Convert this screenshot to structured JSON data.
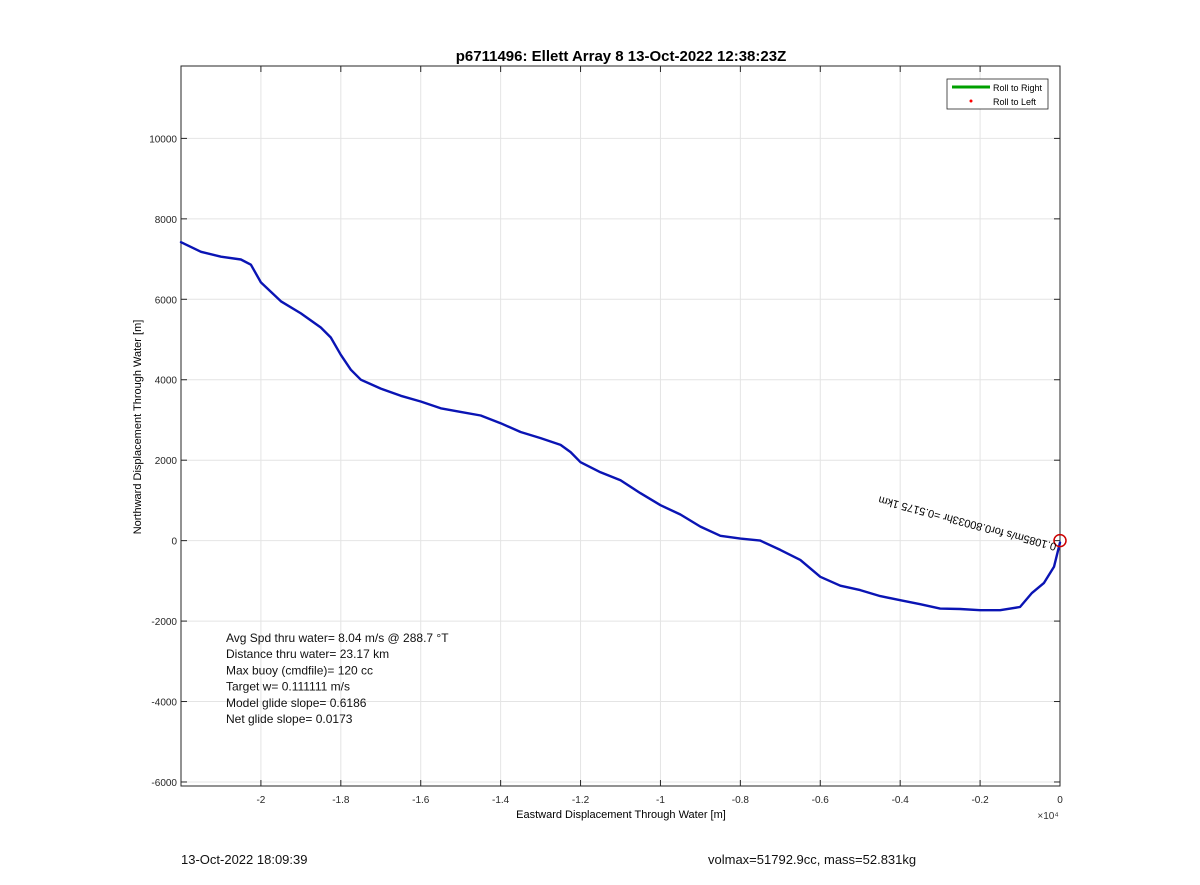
{
  "chart_data": {
    "type": "line",
    "title": "p6711496: Ellett Array 8 13-Oct-2022 12:38:23Z",
    "xlabel": "Eastward Displacement Through Water [m]",
    "ylabel": "Northward Displacement Through Water [m]",
    "xlim": [
      -22000,
      0
    ],
    "ylim": [
      -6100,
      11800
    ],
    "x_exponent_label": "×10⁴",
    "x_ticks": [
      {
        "value": -20000,
        "label": "-2"
      },
      {
        "value": -18000,
        "label": "-1.8"
      },
      {
        "value": -16000,
        "label": "-1.6"
      },
      {
        "value": -14000,
        "label": "-1.4"
      },
      {
        "value": -12000,
        "label": "-1.2"
      },
      {
        "value": -10000,
        "label": "-1"
      },
      {
        "value": -8000,
        "label": "-0.8"
      },
      {
        "value": -6000,
        "label": "-0.6"
      },
      {
        "value": -4000,
        "label": "-0.4"
      },
      {
        "value": -2000,
        "label": "-0.2"
      },
      {
        "value": 0,
        "label": "0"
      }
    ],
    "y_ticks": [
      {
        "value": -6000,
        "label": "-6000"
      },
      {
        "value": -4000,
        "label": "-4000"
      },
      {
        "value": -2000,
        "label": "-2000"
      },
      {
        "value": 0,
        "label": "0"
      },
      {
        "value": 2000,
        "label": "2000"
      },
      {
        "value": 4000,
        "label": "4000"
      },
      {
        "value": 6000,
        "label": "6000"
      },
      {
        "value": 8000,
        "label": "8000"
      },
      {
        "value": 10000,
        "label": "10000"
      }
    ],
    "grid": true,
    "legend": {
      "placement": "top-right",
      "entries": [
        {
          "label": "Roll to Right",
          "color": "#00a000",
          "marker": "line"
        },
        {
          "label": "Roll to Left",
          "color": "#ff0000",
          "marker": "dot"
        }
      ]
    },
    "series": [
      {
        "color": "#0a14b4",
        "points": [
          [
            -22000,
            7420
          ],
          [
            -21500,
            7180
          ],
          [
            -21000,
            7060
          ],
          [
            -20500,
            6990
          ],
          [
            -20250,
            6860
          ],
          [
            -20000,
            6420
          ],
          [
            -19500,
            5950
          ],
          [
            -19000,
            5650
          ],
          [
            -18500,
            5300
          ],
          [
            -18250,
            5050
          ],
          [
            -18000,
            4620
          ],
          [
            -17750,
            4250
          ],
          [
            -17500,
            4000
          ],
          [
            -17000,
            3780
          ],
          [
            -16500,
            3600
          ],
          [
            -16000,
            3460
          ],
          [
            -15500,
            3290
          ],
          [
            -15000,
            3200
          ],
          [
            -14500,
            3110
          ],
          [
            -14000,
            2920
          ],
          [
            -13500,
            2700
          ],
          [
            -13000,
            2550
          ],
          [
            -12500,
            2380
          ],
          [
            -12250,
            2200
          ],
          [
            -12000,
            1950
          ],
          [
            -11500,
            1700
          ],
          [
            -11000,
            1500
          ],
          [
            -10500,
            1180
          ],
          [
            -10000,
            880
          ],
          [
            -9500,
            650
          ],
          [
            -9000,
            350
          ],
          [
            -8500,
            120
          ],
          [
            -8000,
            50
          ],
          [
            -7500,
            0
          ],
          [
            -7000,
            -230
          ],
          [
            -6500,
            -480
          ],
          [
            -6000,
            -900
          ],
          [
            -5500,
            -1120
          ],
          [
            -5000,
            -1230
          ],
          [
            -4500,
            -1380
          ],
          [
            -4000,
            -1480
          ],
          [
            -3500,
            -1580
          ],
          [
            -3000,
            -1690
          ],
          [
            -2500,
            -1700
          ],
          [
            -2000,
            -1730
          ],
          [
            -1500,
            -1730
          ],
          [
            -1000,
            -1650
          ],
          [
            -700,
            -1300
          ],
          [
            -400,
            -1050
          ],
          [
            -150,
            -650
          ],
          [
            0,
            -50
          ]
        ]
      }
    ],
    "annotations": [
      {
        "text": "Avg Spd thru water=  8.04 m/s @ 288.7 °T"
      },
      {
        "text": "Distance thru water= 23.17 km"
      },
      {
        "text": "Max buoy (cmdfile)= 120 cc"
      },
      {
        "text": "Target w= 0.111111 m/s"
      },
      {
        "text": "Model glide slope= 0.6186"
      },
      {
        "text": "Net glide slope= 0.0173"
      }
    ],
    "rotated_annotation": {
      "text": "0.1085m/s for0.80033hr =0.5175 1km",
      "color": "#000000"
    },
    "marker": {
      "x": 0,
      "y": 0,
      "color": "#cc0000"
    }
  },
  "footer": {
    "left": "13-Oct-2022 18:09:39",
    "right": "volmax=51792.9cc, mass=52.831kg"
  }
}
